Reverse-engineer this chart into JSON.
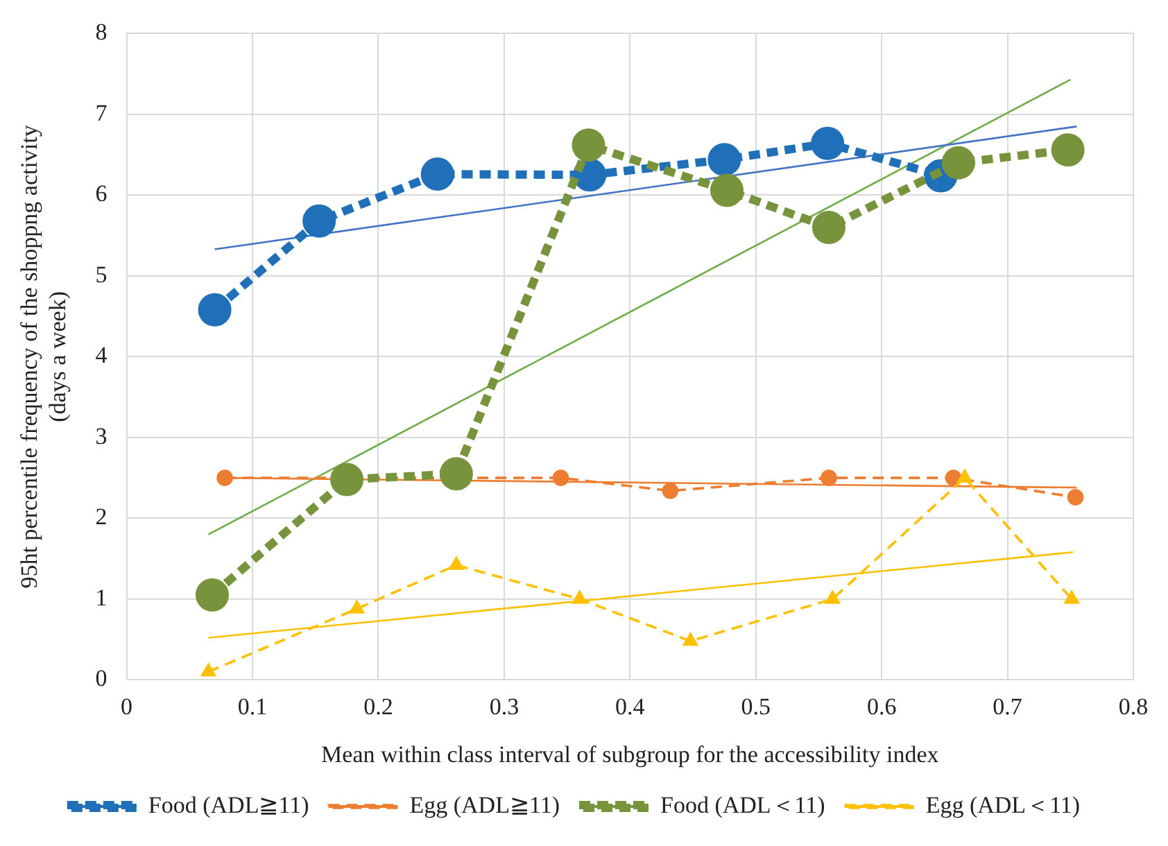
{
  "chart_data": {
    "type": "line",
    "xlabel": "Mean within class interval of subgroup for the accessibility index",
    "ylabel": "95ht percentile frequency of the shoppng activity\n(days a week)",
    "xlim": [
      0,
      0.8
    ],
    "xticks": [
      0,
      0.1,
      0.2,
      0.3,
      0.4,
      0.5,
      0.6,
      0.7,
      0.8
    ],
    "ylim": [
      0,
      8
    ],
    "yticks": [
      0,
      1,
      2,
      3,
      4,
      5,
      6,
      7,
      8
    ],
    "grid": true,
    "legend": "bottom",
    "series": [
      {
        "name": "Food (ADL≧11)",
        "color": "#1f70b8",
        "marker": "circle",
        "line_style": "dashed",
        "x": [
          0.07,
          0.153,
          0.247,
          0.368,
          0.475,
          0.557,
          0.647
        ],
        "values": [
          4.58,
          5.68,
          6.26,
          6.25,
          6.44,
          6.64,
          6.24
        ]
      },
      {
        "name": "Egg (ADL≧11)",
        "color": "#ed7d31",
        "marker": "circle",
        "line_style": "dashed",
        "x": [
          0.078,
          0.262,
          0.345,
          0.432,
          0.558,
          0.657,
          0.754
        ],
        "values": [
          2.5,
          2.5,
          2.5,
          2.34,
          2.5,
          2.5,
          2.26
        ]
      },
      {
        "name": "Food (ADL＜11)",
        "color": "#77933c",
        "marker": "circle",
        "line_style": "dashed",
        "x": [
          0.068,
          0.175,
          0.262,
          0.367,
          0.477,
          0.558,
          0.661,
          0.748
        ],
        "values": [
          1.05,
          2.48,
          2.55,
          6.62,
          6.06,
          5.6,
          6.4,
          6.56
        ]
      },
      {
        "name": "Egg (ADL＜11)",
        "color": "#ffc000",
        "marker": "triangle",
        "line_style": "dashed",
        "x": [
          0.065,
          0.183,
          0.262,
          0.36,
          0.448,
          0.561,
          0.666,
          0.751
        ],
        "values": [
          0.1,
          0.88,
          1.42,
          1.0,
          0.48,
          1.0,
          2.5,
          1.0
        ]
      },
      {
        "color": "#4472c4",
        "marker": "none",
        "line_style": "solid",
        "x": [
          0.07,
          0.755
        ],
        "values": [
          5.33,
          6.85
        ]
      },
      {
        "color": "#ed7d31",
        "marker": "none",
        "line_style": "solid",
        "x": [
          0.078,
          0.755
        ],
        "values": [
          2.5,
          2.38
        ]
      },
      {
        "color": "#70ad47",
        "marker": "none",
        "line_style": "solid",
        "x": [
          0.065,
          0.75
        ],
        "values": [
          1.8,
          7.43
        ]
      },
      {
        "color": "#ffc000",
        "marker": "none",
        "line_style": "solid",
        "x": [
          0.065,
          0.752
        ],
        "values": [
          0.52,
          1.58
        ]
      }
    ]
  }
}
